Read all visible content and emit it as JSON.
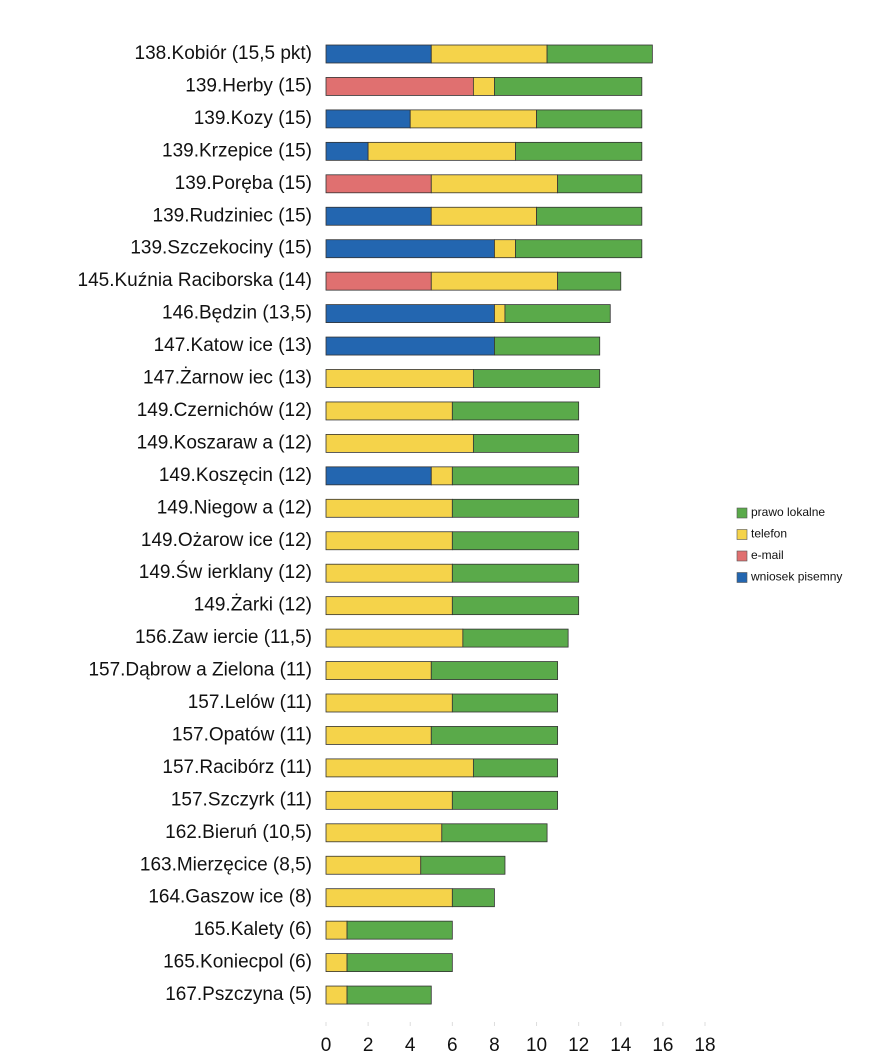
{
  "chart_data": {
    "type": "stacked_bar_horizontal",
    "categories": [
      "138.Kobiór (15,5 pkt)",
      "139.Herby (15)",
      "139.Kozy (15)",
      "139.Krzepice (15)",
      "139.Poręba (15)",
      "139.Rudziniec (15)",
      "139.Szczekociny (15)",
      "145.Kuźnia Raciborska (14)",
      "146.Będzin (13,5)",
      "147.Katow ice (13)",
      "147.Żarnow iec (13)",
      "149.Czernichów (12)",
      "149.Koszaraw a (12)",
      "149.Koszęcin (12)",
      "149.Niegow a (12)",
      "149.Ożarow ice (12)",
      "149.Św ierklany (12)",
      "149.Żarki (12)",
      "156.Zaw iercie (11,5)",
      "157.Dąbrow a Zielona (11)",
      "157.Lelów (11)",
      "157.Opatów (11)",
      "157.Racibórz (11)",
      "157.Szczyrk (11)",
      "162.Bieruń (10,5)",
      "163.Mierzęcice (8,5)",
      "164.Gaszow ice (8)",
      "165.Kalety (6)",
      "165.Koniecpol (6)",
      "167.Pszczyna (5)"
    ],
    "series": [
      {
        "name": "wniosek pisemny",
        "color": "#2366b0",
        "values": [
          5,
          0,
          4,
          2,
          0,
          5,
          8,
          0,
          8,
          8,
          0,
          0,
          0,
          5,
          0,
          0,
          0,
          0,
          0,
          0,
          0,
          0,
          0,
          0,
          0,
          0,
          0,
          0,
          0,
          0
        ]
      },
      {
        "name": "e-mail",
        "color": "#e07070",
        "values": [
          0,
          7,
          0,
          0,
          5,
          0,
          0,
          5,
          0,
          0,
          0,
          0,
          0,
          0,
          0,
          0,
          0,
          0,
          0,
          0,
          0,
          0,
          0,
          0,
          0,
          0,
          0,
          0,
          0,
          0
        ]
      },
      {
        "name": "telefon",
        "color": "#f5d34a",
        "values": [
          5.5,
          1,
          6,
          7,
          6,
          5,
          1,
          6,
          0.5,
          0,
          7,
          6,
          7,
          1,
          6,
          6,
          6,
          6,
          6.5,
          5,
          6,
          5,
          7,
          6,
          5.5,
          4.5,
          6,
          1,
          1,
          1
        ]
      },
      {
        "name": "prawo lokalne",
        "color": "#5aaa4a",
        "values": [
          5,
          7,
          5,
          6,
          4,
          5,
          6,
          3,
          5,
          5,
          6,
          6,
          5,
          6,
          6,
          6,
          6,
          6,
          5,
          6,
          5,
          6,
          4,
          5,
          5,
          4,
          2,
          5,
          5,
          4
        ]
      }
    ],
    "xlim": [
      0,
      18
    ],
    "xticks": [
      0,
      2,
      4,
      6,
      8,
      10,
      12,
      14,
      16,
      18
    ]
  }
}
